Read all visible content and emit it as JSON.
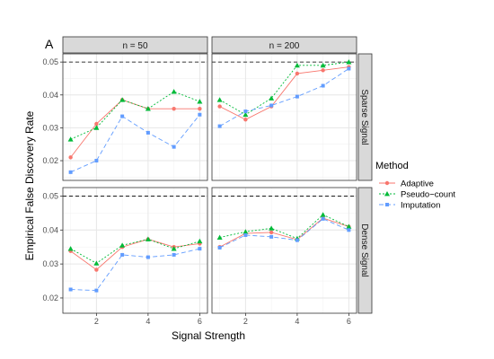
{
  "chart_data": {
    "type": "line",
    "panel_letter": "A",
    "xlabel": "Signal Strength",
    "ylabel": "Empirical False Discovery Rate",
    "x": [
      1,
      2,
      3,
      4,
      5,
      6
    ],
    "xlim": [
      0.7,
      6.3
    ],
    "xticks": [
      2,
      4,
      6
    ],
    "reference_line": 0.05,
    "grid": true,
    "legend": {
      "title": "Method",
      "position": "right"
    },
    "col_facets": [
      "n = 50",
      "n = 200"
    ],
    "row_facets": [
      {
        "label": "Sparse Signal",
        "ylim": [
          0.014,
          0.0525
        ],
        "yticks": [
          0.02,
          0.03,
          0.04,
          0.05
        ]
      },
      {
        "label": "Dense Signal",
        "ylim": [
          0.0155,
          0.0525
        ],
        "yticks": [
          0.02,
          0.03,
          0.04,
          0.05
        ]
      }
    ],
    "series_styles": [
      {
        "name": "Adaptive",
        "color": "#F8766D",
        "dash": "",
        "marker": "circle"
      },
      {
        "name": "Pseudo−count",
        "color": "#00BA38",
        "dash": "2,2",
        "marker": "triangle"
      },
      {
        "name": "Imputation",
        "color": "#619CFF",
        "dash": "5,3",
        "marker": "square"
      }
    ],
    "panels": [
      {
        "row": 0,
        "col": 0,
        "series": [
          {
            "name": "Adaptive",
            "values": [
              0.021,
              0.0312,
              0.0385,
              0.0358,
              0.0358,
              0.0358
            ]
          },
          {
            "name": "Pseudo−count",
            "values": [
              0.0265,
              0.03,
              0.0385,
              0.0358,
              0.041,
              0.038
            ]
          },
          {
            "name": "Imputation",
            "values": [
              0.0165,
              0.02,
              0.0335,
              0.0285,
              0.0242,
              0.034
            ]
          }
        ]
      },
      {
        "row": 0,
        "col": 1,
        "series": [
          {
            "name": "Adaptive",
            "values": [
              0.0365,
              0.0325,
              0.0365,
              0.0465,
              0.0475,
              0.0485
            ]
          },
          {
            "name": "Pseudo−count",
            "values": [
              0.0385,
              0.034,
              0.039,
              0.049,
              0.049,
              0.05
            ]
          },
          {
            "name": "Imputation",
            "values": [
              0.0305,
              0.035,
              0.0368,
              0.0395,
              0.0428,
              0.048
            ]
          }
        ]
      },
      {
        "row": 1,
        "col": 0,
        "series": [
          {
            "name": "Adaptive",
            "values": [
              0.0338,
              0.0283,
              0.035,
              0.0373,
              0.035,
              0.036
            ]
          },
          {
            "name": "Pseudo−count",
            "values": [
              0.0345,
              0.0302,
              0.0355,
              0.0373,
              0.0345,
              0.0367
            ]
          },
          {
            "name": "Imputation",
            "values": [
              0.0225,
              0.0222,
              0.0327,
              0.032,
              0.0327,
              0.0345
            ]
          }
        ]
      },
      {
        "row": 1,
        "col": 1,
        "series": [
          {
            "name": "Adaptive",
            "values": [
              0.035,
              0.039,
              0.0393,
              0.0372,
              0.0435,
              0.041
            ]
          },
          {
            "name": "Pseudo−count",
            "values": [
              0.0378,
              0.0395,
              0.0405,
              0.0375,
              0.0445,
              0.041
            ]
          },
          {
            "name": "Imputation",
            "values": [
              0.0348,
              0.0385,
              0.038,
              0.037,
              0.0433,
              0.04
            ]
          }
        ]
      }
    ]
  }
}
